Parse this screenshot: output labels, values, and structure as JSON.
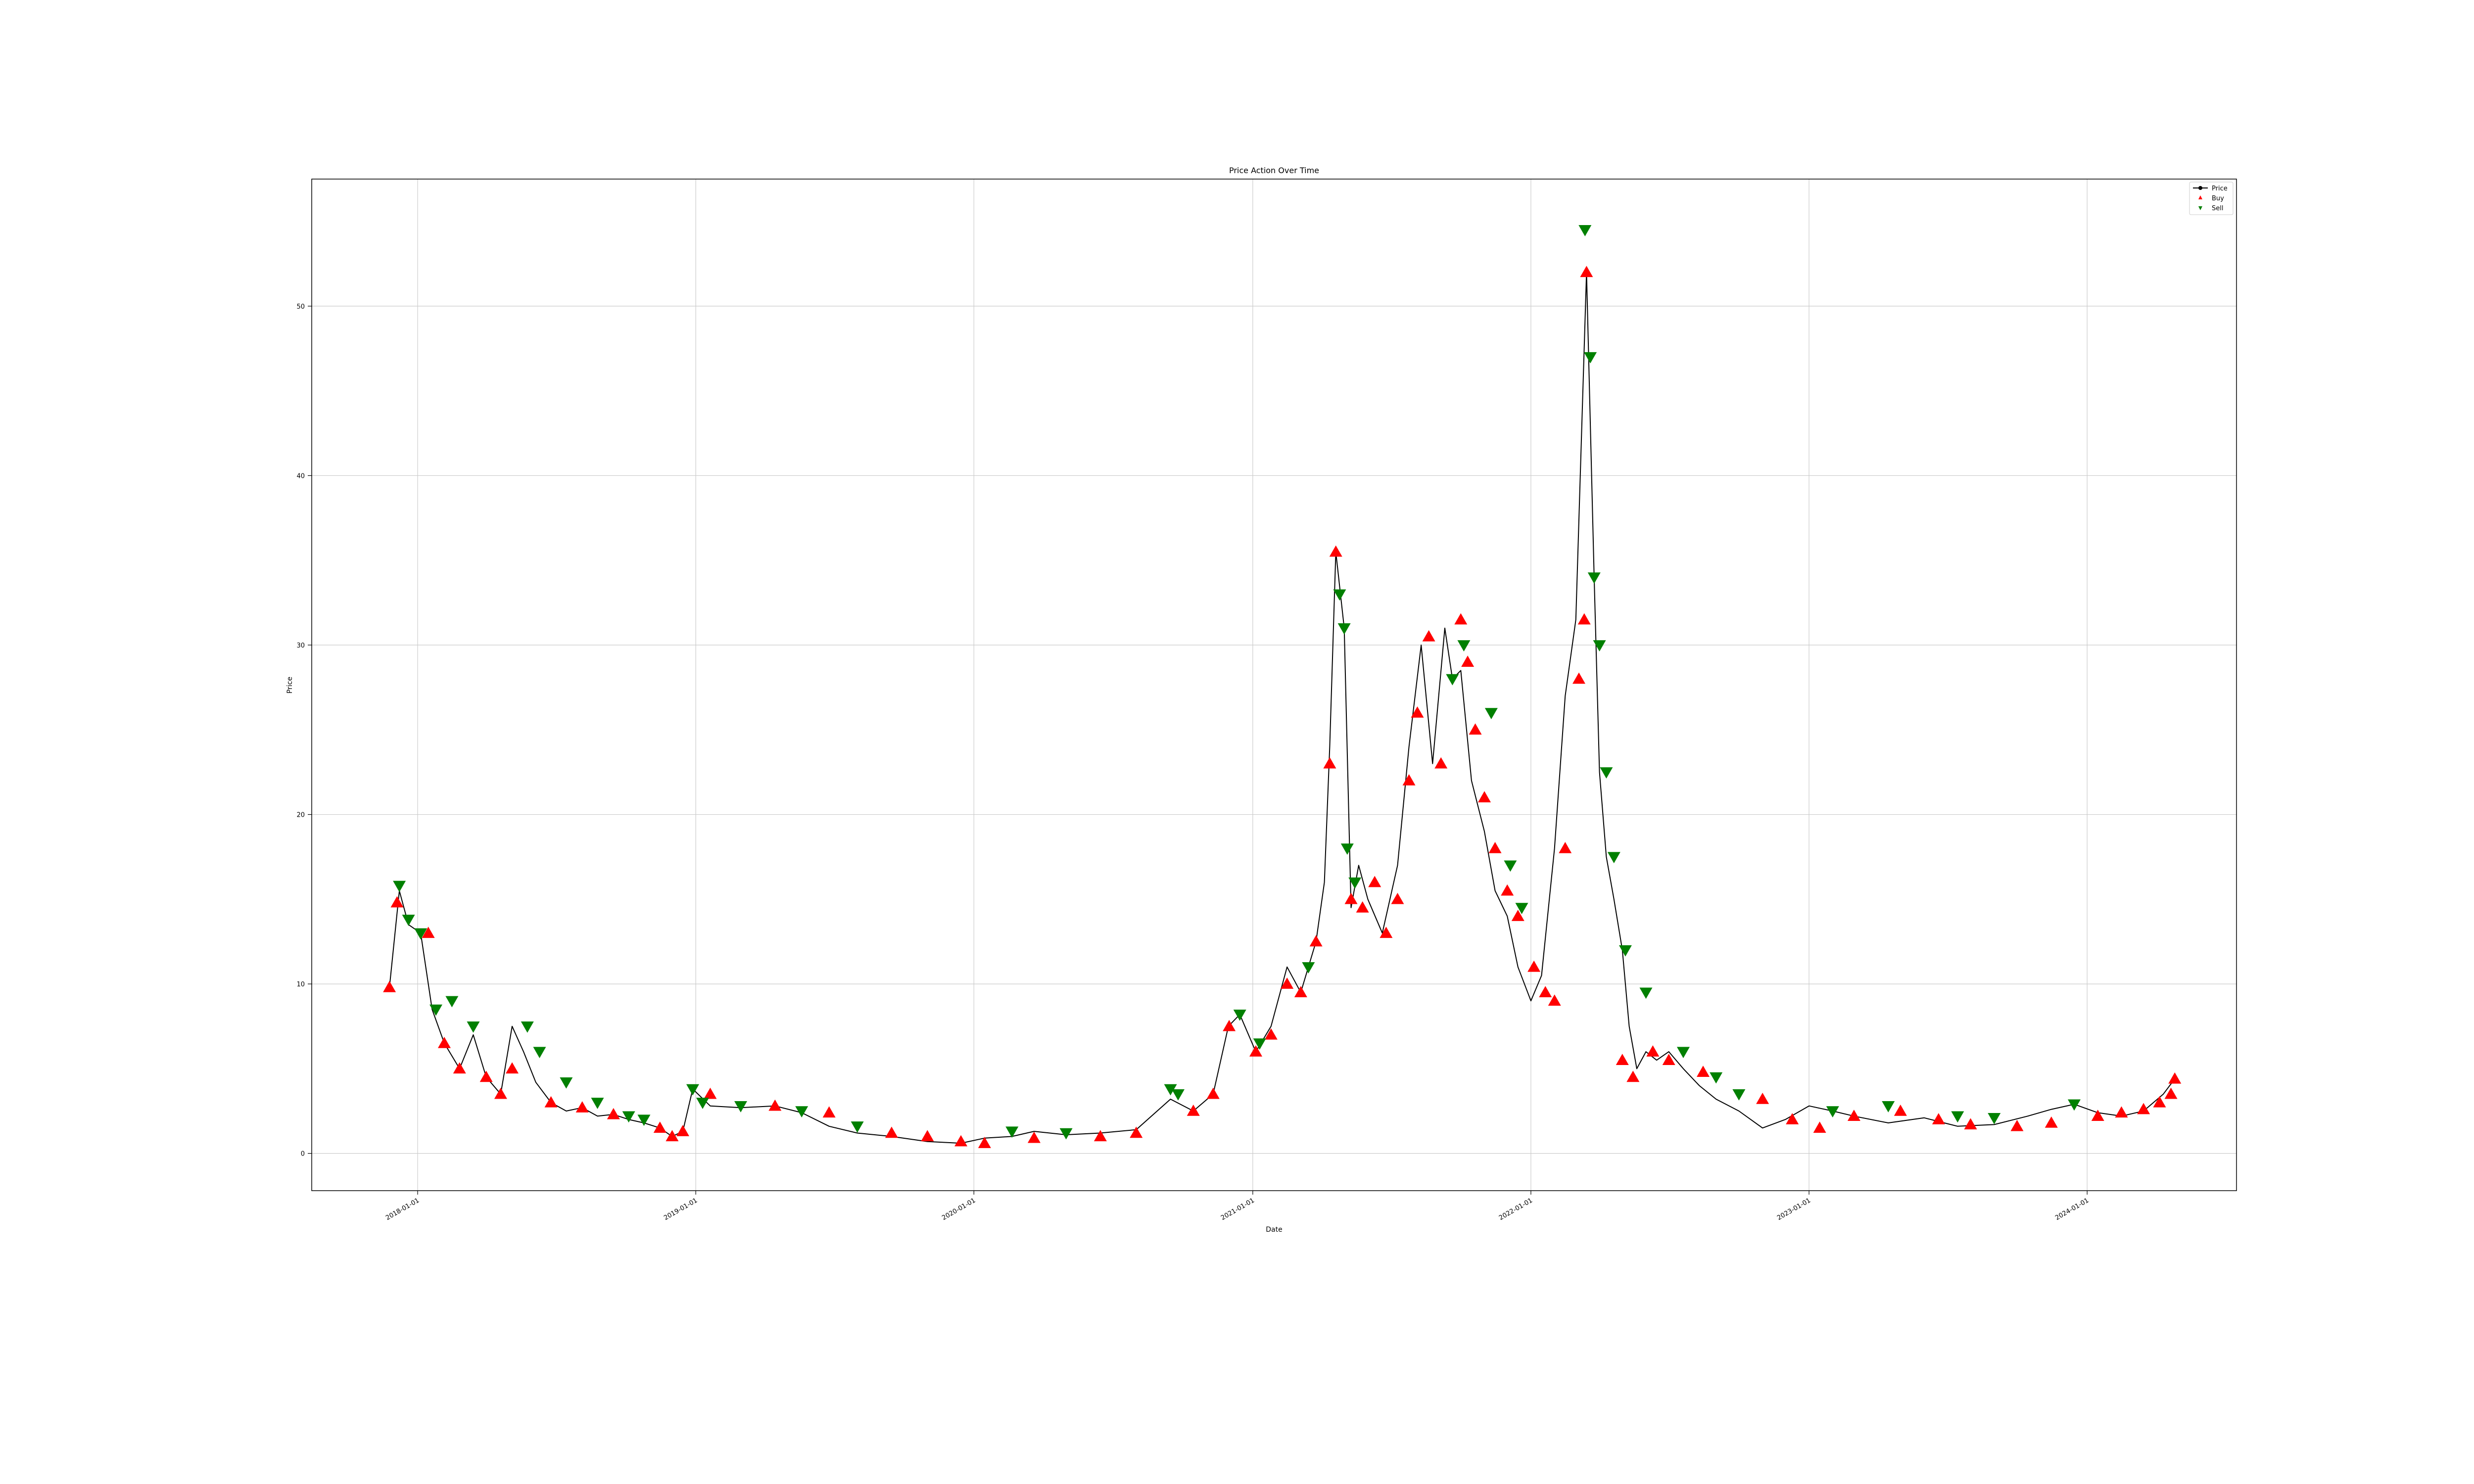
{
  "chart_data": {
    "type": "line",
    "title": "Price Action Over Time",
    "xlabel": "Date",
    "ylabel": "Price",
    "grid": true,
    "legend_position": "top-right",
    "xlim": [
      "2017-08-15",
      "2024-07-15"
    ],
    "ylim": [
      -2.2,
      57.5
    ],
    "x_ticks": [
      "2018-01-01",
      "2019-01-01",
      "2020-01-01",
      "2021-01-01",
      "2022-01-01",
      "2023-01-01",
      "2024-01-01"
    ],
    "y_ticks": [
      0,
      10,
      20,
      30,
      40,
      50
    ],
    "colors": {
      "price": "#000000",
      "buy": "#ff0000",
      "sell": "#008000",
      "grid": "#cccccc",
      "axes": "#000000"
    },
    "series": [
      {
        "name": "Price",
        "style": "line",
        "x": [
          "2017-11-25",
          "2017-12-08",
          "2017-12-20",
          "2018-01-05",
          "2018-01-20",
          "2018-02-05",
          "2018-02-25",
          "2018-03-15",
          "2018-04-01",
          "2018-04-20",
          "2018-05-05",
          "2018-05-20",
          "2018-06-05",
          "2018-06-25",
          "2018-07-15",
          "2018-08-05",
          "2018-08-25",
          "2018-09-15",
          "2018-10-05",
          "2018-10-25",
          "2018-11-15",
          "2018-12-01",
          "2018-12-15",
          "2018-12-28",
          "2019-01-20",
          "2019-03-01",
          "2019-04-15",
          "2019-05-20",
          "2019-06-25",
          "2019-08-01",
          "2019-09-15",
          "2019-11-01",
          "2019-12-15",
          "2020-01-15",
          "2020-02-20",
          "2020-03-20",
          "2020-05-01",
          "2020-06-15",
          "2020-08-01",
          "2020-09-15",
          "2020-10-15",
          "2020-11-10",
          "2020-11-30",
          "2020-12-15",
          "2021-01-05",
          "2021-01-25",
          "2021-02-15",
          "2021-03-05",
          "2021-03-25",
          "2021-04-05",
          "2021-04-12",
          "2021-04-20",
          "2021-05-01",
          "2021-05-10",
          "2021-05-20",
          "2021-06-01",
          "2021-06-20",
          "2021-07-10",
          "2021-07-25",
          "2021-08-10",
          "2021-08-25",
          "2021-09-10",
          "2021-09-20",
          "2021-10-01",
          "2021-10-15",
          "2021-11-01",
          "2021-11-15",
          "2021-12-01",
          "2021-12-15",
          "2022-01-01",
          "2022-01-15",
          "2022-02-01",
          "2022-02-15",
          "2022-03-01",
          "2022-03-15",
          "2022-03-25",
          "2022-04-01",
          "2022-04-10",
          "2022-04-20",
          "2022-05-01",
          "2022-05-10",
          "2022-05-20",
          "2022-06-01",
          "2022-06-15",
          "2022-07-01",
          "2022-07-20",
          "2022-08-10",
          "2022-09-01",
          "2022-10-01",
          "2022-11-01",
          "2022-12-01",
          "2023-01-01",
          "2023-02-01",
          "2023-03-01",
          "2023-04-15",
          "2023-06-01",
          "2023-07-15",
          "2023-09-01",
          "2023-10-15",
          "2023-11-15",
          "2023-12-15",
          "2024-01-15",
          "2024-02-15",
          "2024-03-15",
          "2024-04-10",
          "2024-04-25"
        ],
        "y": [
          9.8,
          15.5,
          13.5,
          13.0,
          8.5,
          6.5,
          5.0,
          7.0,
          4.5,
          3.5,
          7.5,
          6.0,
          4.2,
          3.0,
          2.5,
          2.7,
          2.2,
          2.3,
          2.0,
          1.8,
          1.5,
          1.0,
          1.3,
          3.8,
          2.8,
          2.7,
          2.8,
          2.4,
          1.6,
          1.2,
          1.0,
          0.7,
          0.6,
          0.9,
          1.0,
          1.3,
          1.1,
          1.2,
          1.4,
          3.2,
          2.5,
          3.5,
          7.5,
          8.2,
          6.0,
          7.5,
          11.0,
          9.5,
          12.5,
          16.0,
          24.0,
          35.5,
          31.0,
          14.5,
          17.0,
          15.0,
          13.0,
          17.0,
          24.0,
          30.0,
          23.0,
          31.0,
          28.0,
          28.5,
          22.0,
          19.0,
          15.5,
          14.0,
          11.0,
          9.0,
          10.5,
          18.0,
          27.0,
          31.5,
          52.0,
          34.0,
          22.5,
          17.5,
          15.0,
          12.0,
          7.5,
          5.0,
          6.0,
          5.5,
          6.0,
          5.0,
          4.0,
          3.2,
          2.5,
          1.5,
          2.0,
          2.8,
          2.5,
          2.2,
          1.8,
          2.1,
          1.6,
          1.7,
          2.2,
          2.6,
          2.9,
          2.4,
          2.2,
          2.5,
          3.5,
          4.4
        ]
      },
      {
        "name": "Buy",
        "style": "marker",
        "marker": "^",
        "x": [
          "2017-11-25",
          "2017-12-05",
          "2018-01-15",
          "2018-02-05",
          "2018-02-25",
          "2018-04-01",
          "2018-04-20",
          "2018-05-05",
          "2018-06-25",
          "2018-08-05",
          "2018-09-15",
          "2018-11-15",
          "2018-12-01",
          "2018-12-15",
          "2019-01-20",
          "2019-04-15",
          "2019-06-25",
          "2019-09-15",
          "2019-11-01",
          "2019-12-15",
          "2020-01-15",
          "2020-03-20",
          "2020-06-15",
          "2020-08-01",
          "2020-10-15",
          "2020-11-10",
          "2020-12-01",
          "2021-01-05",
          "2021-01-25",
          "2021-02-15",
          "2021-03-05",
          "2021-03-25",
          "2021-04-12",
          "2021-04-20",
          "2021-05-10",
          "2021-05-25",
          "2021-06-10",
          "2021-06-25",
          "2021-07-10",
          "2021-07-25",
          "2021-08-05",
          "2021-08-20",
          "2021-09-05",
          "2021-10-01",
          "2021-10-10",
          "2021-10-20",
          "2021-11-01",
          "2021-11-15",
          "2021-12-01",
          "2021-12-15",
          "2022-01-05",
          "2022-01-20",
          "2022-02-01",
          "2022-02-15",
          "2022-03-05",
          "2022-03-12",
          "2022-03-15",
          "2022-05-01",
          "2022-05-15",
          "2022-06-10",
          "2022-07-01",
          "2022-08-15",
          "2022-11-01",
          "2022-12-10",
          "2023-01-15",
          "2023-03-01",
          "2023-05-01",
          "2023-06-20",
          "2023-08-01",
          "2023-10-01",
          "2023-11-15",
          "2024-01-15",
          "2024-02-15",
          "2024-03-15",
          "2024-04-05",
          "2024-04-20",
          "2024-04-25"
        ],
        "y": [
          9.8,
          14.8,
          13.0,
          6.5,
          5.0,
          4.5,
          3.5,
          5.0,
          3.0,
          2.7,
          2.3,
          1.5,
          1.0,
          1.3,
          3.5,
          2.8,
          2.4,
          1.2,
          1.0,
          0.7,
          0.6,
          0.9,
          1.0,
          1.2,
          2.5,
          3.5,
          7.5,
          6.0,
          7.0,
          10.0,
          9.5,
          12.5,
          23.0,
          35.5,
          15.0,
          14.5,
          16.0,
          13.0,
          15.0,
          22.0,
          26.0,
          30.5,
          23.0,
          31.5,
          29.0,
          25.0,
          21.0,
          18.0,
          15.5,
          14.0,
          11.0,
          9.5,
          9.0,
          18.0,
          28.0,
          31.5,
          52.0,
          5.5,
          4.5,
          6.0,
          5.5,
          4.8,
          3.2,
          2.0,
          1.5,
          2.2,
          2.5,
          2.0,
          1.7,
          1.6,
          1.8,
          2.2,
          2.4,
          2.6,
          3.0,
          3.5,
          4.4
        ]
      },
      {
        "name": "Sell",
        "style": "marker",
        "marker": "v",
        "x": [
          "2017-12-08",
          "2017-12-20",
          "2018-01-05",
          "2018-01-25",
          "2018-02-15",
          "2018-03-15",
          "2018-05-25",
          "2018-06-10",
          "2018-07-15",
          "2018-08-25",
          "2018-10-05",
          "2018-10-25",
          "2018-12-28",
          "2019-01-10",
          "2019-03-01",
          "2019-05-20",
          "2019-08-01",
          "2020-02-20",
          "2020-05-01",
          "2020-09-15",
          "2020-09-25",
          "2020-12-15",
          "2021-01-10",
          "2021-03-15",
          "2021-04-25",
          "2021-05-01",
          "2021-05-05",
          "2021-05-15",
          "2021-09-20",
          "2021-10-05",
          "2021-11-10",
          "2021-12-05",
          "2021-12-20",
          "2022-03-13",
          "2022-03-20",
          "2022-03-25",
          "2022-04-01",
          "2022-04-10",
          "2022-04-20",
          "2022-05-05",
          "2022-06-01",
          "2022-07-20",
          "2022-09-01",
          "2022-10-01",
          "2023-02-01",
          "2023-04-15",
          "2023-07-15",
          "2023-09-01",
          "2023-12-15"
        ],
        "y": [
          15.8,
          13.8,
          13.0,
          8.5,
          9.0,
          7.5,
          7.5,
          6.0,
          4.2,
          3.0,
          2.2,
          2.0,
          3.8,
          3.0,
          2.8,
          2.5,
          1.6,
          1.3,
          1.2,
          3.8,
          3.5,
          8.2,
          6.5,
          11.0,
          33.0,
          31.0,
          18.0,
          16.0,
          28.0,
          30.0,
          26.0,
          17.0,
          14.5,
          54.5,
          47.0,
          34.0,
          30.0,
          22.5,
          17.5,
          12.0,
          9.5,
          6.0,
          4.5,
          3.5,
          2.5,
          2.8,
          2.2,
          2.1,
          2.9
        ]
      }
    ]
  }
}
